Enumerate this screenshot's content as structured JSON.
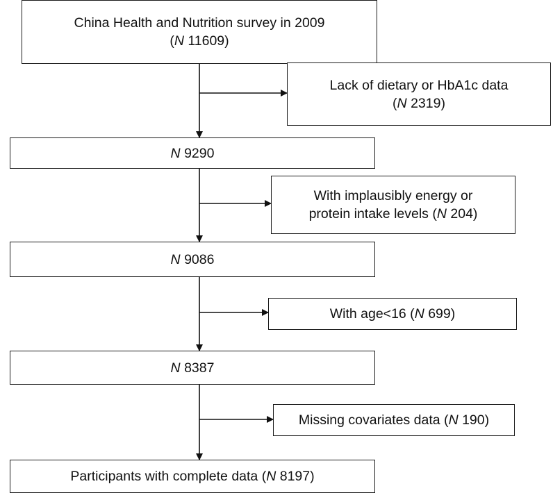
{
  "n_symbol": "N",
  "main": {
    "step1": {
      "line1": "China Health and Nutrition survey in 2009",
      "count": "11609"
    },
    "step2": {
      "count": "9290"
    },
    "step3": {
      "count": "9086"
    },
    "step4": {
      "count": "8387"
    },
    "step5": {
      "text": "Participants with complete data",
      "count": "8197"
    }
  },
  "exclusions": {
    "ex1": {
      "line1": "Lack of dietary or HbA1c data",
      "count": "2319"
    },
    "ex2": {
      "line1": "With implausibly energy or",
      "line2": "protein intake levels",
      "count": "204"
    },
    "ex3": {
      "text": "With age<16",
      "count": "699"
    },
    "ex4": {
      "text": "Missing covariates data",
      "count": "190"
    }
  }
}
